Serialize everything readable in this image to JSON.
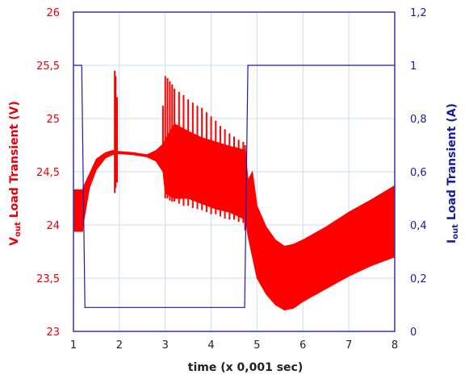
{
  "chart_data": {
    "type": "line",
    "xlabel": "time  (x 0,001 sec)",
    "ylabel_left": {
      "main": "V",
      "sub": "out",
      "rest": " Load Transient (V)"
    },
    "ylabel_right": {
      "main": "I",
      "sub": "out",
      "rest": " Load Transient (A)"
    },
    "xlim": [
      1,
      8
    ],
    "ylim_left": [
      23,
      26
    ],
    "ylim_right": [
      0,
      1.2
    ],
    "x_ticks": [
      "1",
      "2",
      "3",
      "4",
      "5",
      "6",
      "7",
      "8"
    ],
    "y_left_ticks": [
      "23",
      "23,5",
      "24",
      "24,5",
      "25",
      "25,5",
      "26"
    ],
    "y_right_ticks": [
      "0",
      "0,2",
      "0,4",
      "0,6",
      "0,8",
      "1",
      "1,2"
    ],
    "grid": true,
    "colors": {
      "vout": "#ff0000",
      "iout": "#1a1aa8",
      "axis": "#3333aa",
      "grid": "#c5dff0"
    },
    "series": [
      {
        "axis": "right",
        "style": "step",
        "x": [
          1.0,
          1.18,
          1.25,
          4.73,
          4.8,
          8.0
        ],
        "y": [
          1.0,
          1.0,
          0.09,
          0.09,
          1.0,
          1.0
        ]
      },
      {
        "axis": "left",
        "style": "band",
        "x": [
          1.0,
          1.2,
          1.21,
          1.35,
          1.5,
          1.7,
          1.85,
          2.0,
          2.3,
          2.6,
          2.8,
          2.95,
          3.0,
          3.2,
          3.5,
          3.8,
          4.1,
          4.4,
          4.6,
          4.75,
          4.8,
          4.9,
          5.0,
          5.2,
          5.4,
          5.6,
          5.8,
          6.0,
          6.5,
          7.0,
          7.5,
          8.0
        ],
        "upper": [
          24.33,
          24.33,
          24.35,
          24.48,
          24.62,
          24.68,
          24.7,
          24.69,
          24.68,
          24.66,
          24.7,
          24.76,
          24.8,
          24.95,
          24.88,
          24.82,
          24.78,
          24.74,
          24.72,
          24.7,
          24.42,
          24.5,
          24.18,
          23.98,
          23.86,
          23.8,
          23.82,
          23.86,
          23.98,
          24.12,
          24.24,
          24.37
        ],
        "lower": [
          23.94,
          23.94,
          24.0,
          24.35,
          24.52,
          24.63,
          24.66,
          24.67,
          24.66,
          24.64,
          24.6,
          24.5,
          24.3,
          24.25,
          24.25,
          24.2,
          24.15,
          24.12,
          24.08,
          24.05,
          23.9,
          23.7,
          23.5,
          23.35,
          23.25,
          23.2,
          23.22,
          23.28,
          23.4,
          23.52,
          23.62,
          23.7
        ]
      },
      {
        "axis": "left",
        "style": "spikes",
        "x": [
          1.9,
          1.92,
          1.95,
          2.95,
          3.0,
          3.05,
          3.1,
          3.15,
          3.2,
          3.3,
          3.4,
          3.5,
          3.6,
          3.7,
          3.8,
          3.9,
          4.0,
          4.1,
          4.2,
          4.3,
          4.4,
          4.5,
          4.6,
          4.7,
          4.74
        ],
        "high": [
          25.45,
          25.4,
          25.2,
          25.12,
          25.4,
          25.38,
          25.35,
          25.32,
          25.28,
          25.25,
          25.22,
          25.18,
          25.15,
          25.12,
          25.1,
          25.06,
          25.02,
          24.98,
          24.93,
          24.9,
          24.86,
          24.83,
          24.8,
          24.78,
          24.75
        ],
        "low": [
          24.3,
          24.35,
          24.4,
          24.55,
          24.25,
          24.25,
          24.23,
          24.22,
          24.22,
          24.2,
          24.18,
          24.18,
          24.16,
          24.15,
          24.14,
          24.12,
          24.1,
          24.1,
          24.08,
          24.06,
          24.05,
          24.05,
          24.03,
          24.02,
          23.95
        ]
      }
    ]
  }
}
